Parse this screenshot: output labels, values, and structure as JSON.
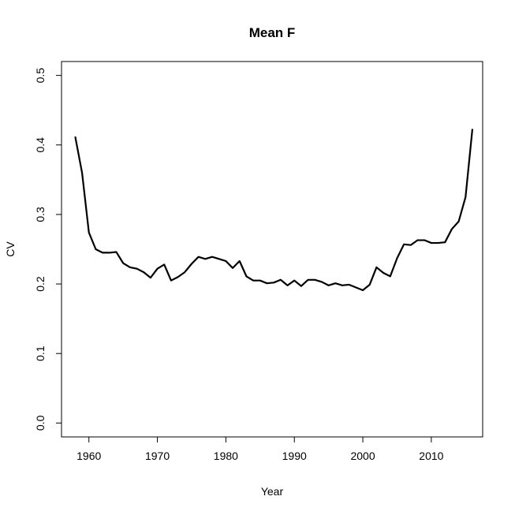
{
  "chart_data": {
    "type": "line",
    "title": "Mean F",
    "xlabel": "Year",
    "ylabel": "CV",
    "xlim": [
      1956,
      2017.5
    ],
    "ylim": [
      -0.02,
      0.52
    ],
    "xticks": [
      1960,
      1970,
      1980,
      1990,
      2000,
      2010
    ],
    "yticks": [
      0.0,
      0.1,
      0.2,
      0.3,
      0.4,
      0.5
    ],
    "ytick_labels": [
      "0.0",
      "0.1",
      "0.2",
      "0.3",
      "0.4",
      "0.5"
    ],
    "grid": false,
    "series": [
      {
        "color": "#000000",
        "x": [
          1958,
          1959,
          1960,
          1961,
          1962,
          1963,
          1964,
          1965,
          1966,
          1967,
          1968,
          1969,
          1970,
          1971,
          1972,
          1973,
          1974,
          1975,
          1976,
          1977,
          1978,
          1979,
          1980,
          1981,
          1982,
          1983,
          1984,
          1985,
          1986,
          1987,
          1988,
          1989,
          1990,
          1991,
          1992,
          1993,
          1994,
          1995,
          1996,
          1997,
          1998,
          1999,
          2000,
          2001,
          2002,
          2003,
          2004,
          2005,
          2006,
          2007,
          2008,
          2009,
          2010,
          2011,
          2012,
          2013,
          2014,
          2015,
          2016
        ],
        "y": [
          0.412,
          0.36,
          0.274,
          0.25,
          0.245,
          0.245,
          0.246,
          0.23,
          0.224,
          0.222,
          0.217,
          0.209,
          0.222,
          0.228,
          0.205,
          0.21,
          0.217,
          0.229,
          0.239,
          0.236,
          0.239,
          0.236,
          0.233,
          0.223,
          0.233,
          0.211,
          0.205,
          0.205,
          0.201,
          0.202,
          0.206,
          0.198,
          0.205,
          0.197,
          0.206,
          0.206,
          0.203,
          0.198,
          0.201,
          0.198,
          0.199,
          0.195,
          0.191,
          0.199,
          0.224,
          0.216,
          0.211,
          0.237,
          0.257,
          0.256,
          0.263,
          0.263,
          0.259,
          0.259,
          0.26,
          0.279,
          0.29,
          0.325,
          0.423
        ]
      }
    ]
  }
}
